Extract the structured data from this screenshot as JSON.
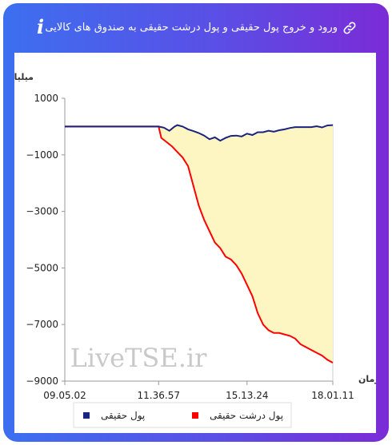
{
  "header": {
    "title": "ورود و خروج پول حقیقی و پول درشت حقیقی به صندوق های کالایی",
    "info_icon": "info-icon",
    "link_icon": "link-icon"
  },
  "watermark": "LiveTSE.ir",
  "colors": {
    "real_money": "#1a237e",
    "large_real_money": "#ff0000",
    "fill": "#fdf6c3",
    "gradient_start": "#3d6ff0",
    "gradient_end": "#7b2bd6"
  },
  "chart_data": {
    "type": "line",
    "ylabel": "میلیارد تومان",
    "xlabel": "زمان",
    "ylim": [
      -9000,
      1000
    ],
    "yticks": [
      1000,
      -1000,
      -3000,
      -5000,
      -7000,
      -9000
    ],
    "xlim": [
      0,
      100
    ],
    "xticks": [
      {
        "x": 0,
        "label": "09.05.02"
      },
      {
        "x": 35,
        "label": "11.36.57"
      },
      {
        "x": 68,
        "label": "15.13.24"
      },
      {
        "x": 100,
        "label": "18.01.11"
      }
    ],
    "legend": {
      "position": "bottom"
    },
    "series": [
      {
        "name": "پول حقیقی",
        "color": "#1a237e",
        "points": [
          [
            0,
            0
          ],
          [
            10,
            0
          ],
          [
            20,
            0
          ],
          [
            30,
            0
          ],
          [
            35,
            0
          ],
          [
            37,
            -40
          ],
          [
            39,
            -150
          ],
          [
            41,
            0
          ],
          [
            42,
            50
          ],
          [
            44,
            0
          ],
          [
            46,
            -100
          ],
          [
            48,
            -160
          ],
          [
            50,
            -230
          ],
          [
            52,
            -320
          ],
          [
            54,
            -450
          ],
          [
            56,
            -380
          ],
          [
            58,
            -500
          ],
          [
            60,
            -400
          ],
          [
            62,
            -330
          ],
          [
            64,
            -320
          ],
          [
            66,
            -350
          ],
          [
            68,
            -250
          ],
          [
            70,
            -300
          ],
          [
            72,
            -200
          ],
          [
            74,
            -200
          ],
          [
            76,
            -150
          ],
          [
            78,
            -180
          ],
          [
            80,
            -130
          ],
          [
            82,
            -100
          ],
          [
            84,
            -50
          ],
          [
            86,
            -20
          ],
          [
            88,
            -20
          ],
          [
            90,
            -20
          ],
          [
            92,
            -20
          ],
          [
            94,
            10
          ],
          [
            96,
            -30
          ],
          [
            98,
            40
          ],
          [
            100,
            50
          ]
        ]
      },
      {
        "name": "پول درشت حقیقی",
        "color": "#ff0000",
        "points": [
          [
            0,
            0
          ],
          [
            10,
            0
          ],
          [
            20,
            0
          ],
          [
            30,
            0
          ],
          [
            35,
            0
          ],
          [
            36,
            -400
          ],
          [
            38,
            -550
          ],
          [
            40,
            -700
          ],
          [
            42,
            -900
          ],
          [
            44,
            -1100
          ],
          [
            46,
            -1400
          ],
          [
            48,
            -2100
          ],
          [
            50,
            -2800
          ],
          [
            52,
            -3300
          ],
          [
            54,
            -3700
          ],
          [
            56,
            -4100
          ],
          [
            58,
            -4300
          ],
          [
            60,
            -4600
          ],
          [
            62,
            -4700
          ],
          [
            64,
            -4900
          ],
          [
            66,
            -5200
          ],
          [
            68,
            -5600
          ],
          [
            70,
            -6000
          ],
          [
            72,
            -6600
          ],
          [
            74,
            -7000
          ],
          [
            76,
            -7200
          ],
          [
            78,
            -7300
          ],
          [
            80,
            -7300
          ],
          [
            82,
            -7350
          ],
          [
            84,
            -7400
          ],
          [
            86,
            -7500
          ],
          [
            88,
            -7700
          ],
          [
            90,
            -7800
          ],
          [
            92,
            -7900
          ],
          [
            94,
            -8000
          ],
          [
            96,
            -8100
          ],
          [
            98,
            -8250
          ],
          [
            100,
            -8350
          ]
        ]
      }
    ]
  }
}
